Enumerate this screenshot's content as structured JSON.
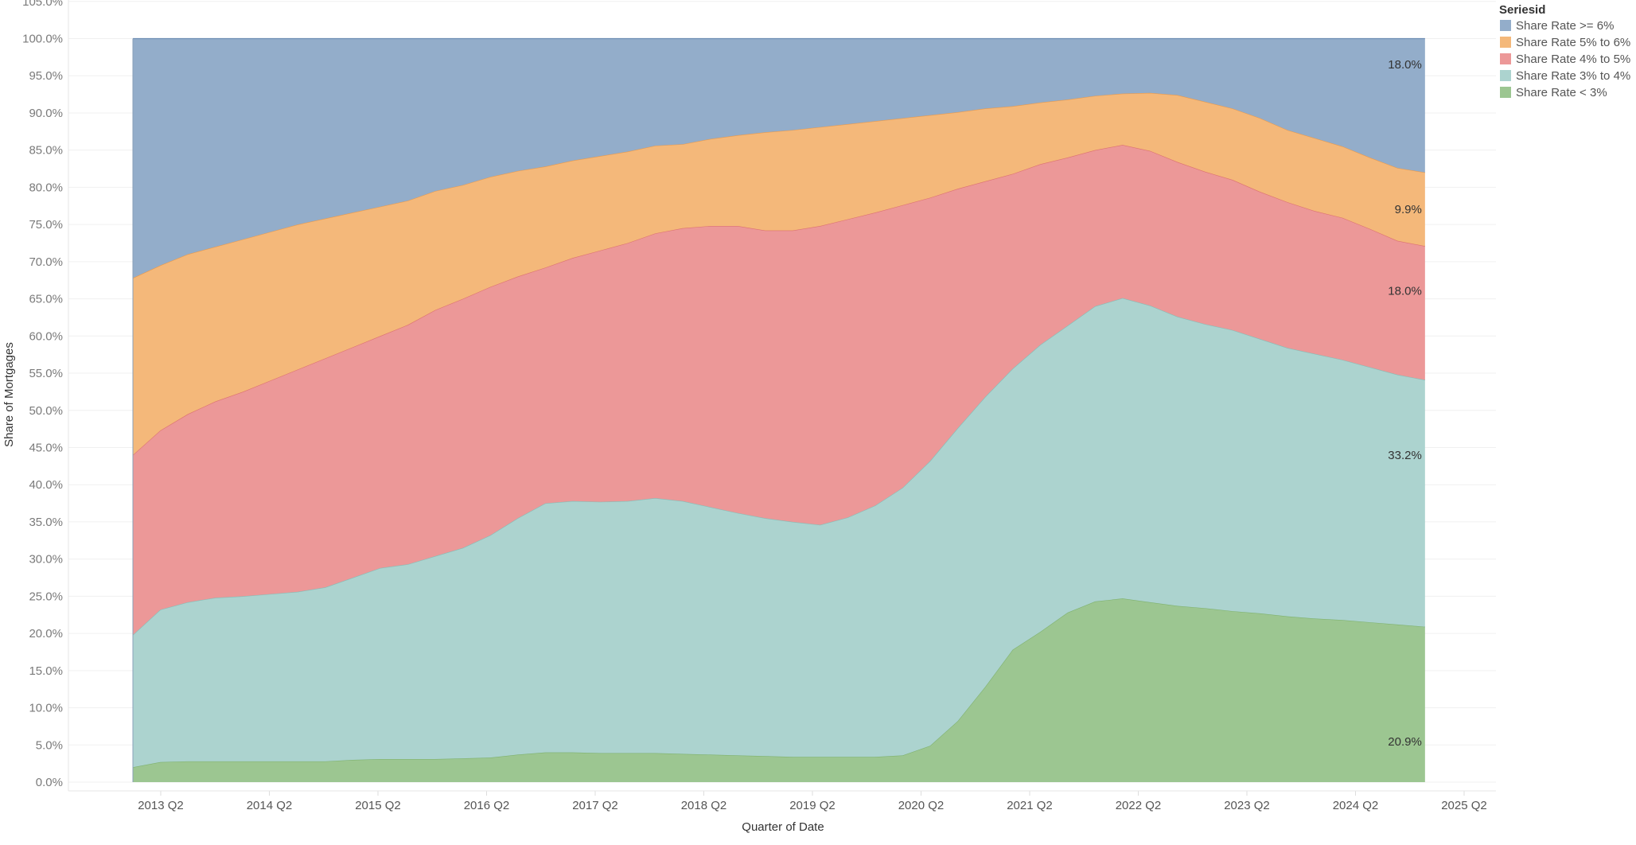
{
  "chart_data": {
    "type": "area",
    "stacked": true,
    "title": "",
    "xlabel": "Quarter of Date",
    "ylabel": "Share of Mortgages",
    "ylim": [
      0,
      105
    ],
    "y_ticks": [
      "0.0%",
      "5.0%",
      "10.0%",
      "15.0%",
      "20.0%",
      "25.0%",
      "30.0%",
      "35.0%",
      "40.0%",
      "45.0%",
      "50.0%",
      "55.0%",
      "60.0%",
      "65.0%",
      "70.0%",
      "75.0%",
      "80.0%",
      "85.0%",
      "90.0%",
      "95.0%",
      "100.0%",
      "105.0%"
    ],
    "x_ticks": [
      "2013 Q2",
      "2014 Q2",
      "2015 Q2",
      "2016 Q2",
      "2017 Q2",
      "2018 Q2",
      "2019 Q2",
      "2020 Q2",
      "2021 Q2",
      "2022 Q2",
      "2023 Q2",
      "2024 Q2",
      "2025 Q2"
    ],
    "x": [
      "2013 Q1",
      "2013 Q2",
      "2013 Q3",
      "2013 Q4",
      "2014 Q1",
      "2014 Q2",
      "2014 Q3",
      "2014 Q4",
      "2015 Q1",
      "2015 Q2",
      "2015 Q3",
      "2015 Q4",
      "2016 Q1",
      "2016 Q2",
      "2016 Q3",
      "2016 Q4",
      "2017 Q1",
      "2017 Q2",
      "2017 Q3",
      "2017 Q4",
      "2018 Q1",
      "2018 Q2",
      "2018 Q3",
      "2018 Q4",
      "2019 Q1",
      "2019 Q2",
      "2019 Q3",
      "2019 Q4",
      "2020 Q1",
      "2020 Q2",
      "2020 Q3",
      "2020 Q4",
      "2021 Q1",
      "2021 Q2",
      "2021 Q3",
      "2021 Q4",
      "2022 Q1",
      "2022 Q2",
      "2022 Q3",
      "2022 Q4",
      "2023 Q1",
      "2023 Q2",
      "2023 Q3",
      "2023 Q4",
      "2024 Q1",
      "2024 Q2",
      "2024 Q3",
      "2024 Q4"
    ],
    "grid": true,
    "legend": {
      "title": "Seriesid",
      "placement": "top-right"
    },
    "series": [
      {
        "name": "Share Rate < 3%",
        "color": "#9cc691",
        "stroke": "#7fb26f",
        "end_label": "20.9%",
        "values": [
          2.0,
          2.7,
          2.8,
          2.8,
          2.8,
          2.8,
          2.8,
          2.8,
          3.0,
          3.1,
          3.1,
          3.1,
          3.2,
          3.3,
          3.7,
          4.0,
          4.0,
          3.9,
          3.9,
          3.9,
          3.8,
          3.7,
          3.6,
          3.5,
          3.4,
          3.4,
          3.4,
          3.4,
          3.6,
          4.9,
          8.2,
          12.8,
          17.8,
          20.2,
          22.8,
          24.3,
          24.7,
          24.2,
          23.7,
          23.4,
          23.0,
          22.7,
          22.3,
          22.0,
          21.8,
          21.5,
          21.2,
          20.9
        ]
      },
      {
        "name": "Share Rate 3% to 4%",
        "color": "#acd3cf",
        "stroke": "#86bdb7",
        "end_label": "33.2%",
        "values": [
          17.8,
          20.5,
          21.4,
          22.0,
          22.2,
          22.5,
          22.8,
          23.4,
          24.5,
          25.7,
          26.2,
          27.3,
          28.3,
          29.9,
          31.8,
          33.5,
          33.8,
          33.8,
          33.9,
          34.3,
          34.0,
          33.3,
          32.6,
          32.0,
          31.6,
          31.2,
          32.2,
          33.8,
          36.0,
          38.3,
          39.4,
          39.0,
          37.8,
          38.6,
          38.6,
          39.7,
          40.4,
          39.9,
          38.9,
          38.2,
          37.8,
          36.9,
          36.1,
          35.6,
          35.0,
          34.3,
          33.6,
          33.2
        ]
      },
      {
        "name": "Share Rate 4% to 5%",
        "color": "#ec9898",
        "stroke": "#dc7171",
        "end_label": "18.0%",
        "values": [
          24.2,
          24.1,
          25.3,
          26.4,
          27.5,
          28.7,
          29.9,
          30.8,
          31.0,
          31.2,
          32.2,
          33.1,
          33.5,
          33.4,
          32.5,
          31.7,
          32.7,
          33.8,
          34.7,
          35.6,
          36.7,
          37.8,
          38.6,
          38.7,
          39.2,
          40.2,
          40.1,
          39.4,
          38.0,
          35.4,
          32.2,
          29.0,
          26.2,
          24.3,
          22.6,
          21.0,
          20.6,
          20.8,
          20.8,
          20.5,
          20.2,
          19.8,
          19.6,
          19.2,
          19.1,
          18.6,
          18.0,
          18.0
        ]
      },
      {
        "name": "Share Rate 5% to 6%",
        "color": "#f4b87a",
        "stroke": "#ea9a4c",
        "end_label": "9.9%",
        "values": [
          23.8,
          22.2,
          21.5,
          20.8,
          20.5,
          20.0,
          19.5,
          18.8,
          18.1,
          17.4,
          16.7,
          16.0,
          15.3,
          14.8,
          14.2,
          13.6,
          13.1,
          12.7,
          12.3,
          11.8,
          11.3,
          11.7,
          12.2,
          13.2,
          13.5,
          13.3,
          12.8,
          12.3,
          11.7,
          11.1,
          10.3,
          9.8,
          9.1,
          8.3,
          7.8,
          7.3,
          6.9,
          7.8,
          9.0,
          9.4,
          9.6,
          9.9,
          9.7,
          9.8,
          9.6,
          9.6,
          9.8,
          9.9
        ]
      },
      {
        "name": "Share Rate >= 6%",
        "color": "#93adca",
        "stroke": "#6f8fb4",
        "end_label": "18.0%",
        "values": [
          32.2,
          30.5,
          29.0,
          28.0,
          27.0,
          26.0,
          25.0,
          24.2,
          23.4,
          22.6,
          21.8,
          20.5,
          19.7,
          18.6,
          17.8,
          17.2,
          16.4,
          15.8,
          15.2,
          14.4,
          14.2,
          13.5,
          13.0,
          12.6,
          12.3,
          11.9,
          11.5,
          11.1,
          10.7,
          10.3,
          9.9,
          9.4,
          9.1,
          8.6,
          8.2,
          7.7,
          7.4,
          7.3,
          7.6,
          8.5,
          9.4,
          10.7,
          12.3,
          13.4,
          14.5,
          16.0,
          17.4,
          18.0
        ]
      }
    ]
  }
}
